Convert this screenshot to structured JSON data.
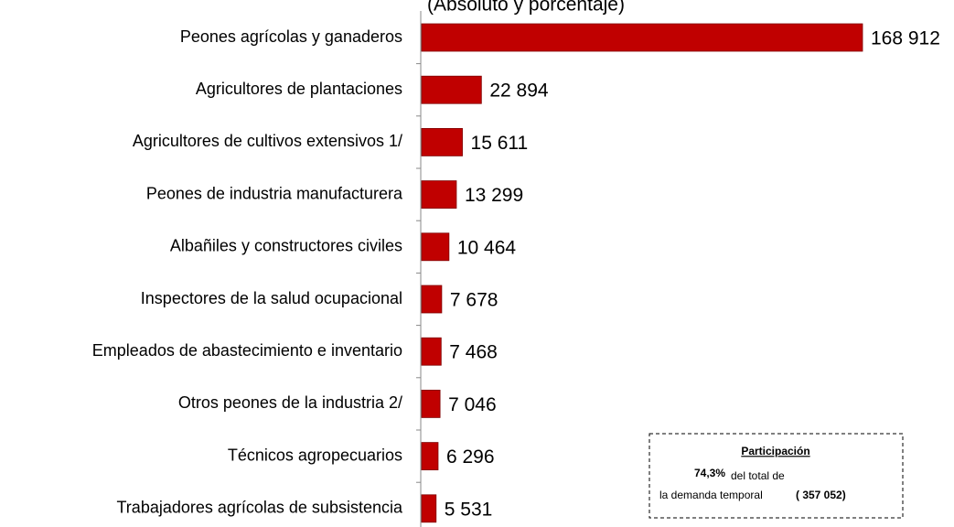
{
  "chart_data": {
    "type": "bar",
    "orientation": "horizontal",
    "subtitle": "(Absoluto y porcentaje)",
    "categories": [
      "Peones agrícolas y ganaderos",
      "Agricultores de plantaciones",
      "Agricultores de cultivos extensivos 1/",
      "Peones de industria manufacturera",
      "Albañiles y constructores civiles",
      "Inspectores de la salud ocupacional",
      "Empleados de abastecimiento e inventario",
      "Otros peones de la industria 2/",
      "Técnicos agropecuarios",
      "Trabajadores agrícolas de subsistencia"
    ],
    "values": [
      168912,
      22894,
      15611,
      13299,
      10464,
      7678,
      7468,
      7046,
      6296,
      5531
    ],
    "value_labels": [
      "168 912",
      "22 894",
      "15 611",
      "13 299",
      "10 464",
      "7 678",
      "7 468",
      "7 046",
      "6 296",
      "5 531"
    ],
    "color": "#c00000",
    "annotation": {
      "title": "Participación",
      "share": "74,3%",
      "text1": "del total de",
      "text2": "la demanda temporal",
      "total": "( 357 052)"
    }
  }
}
